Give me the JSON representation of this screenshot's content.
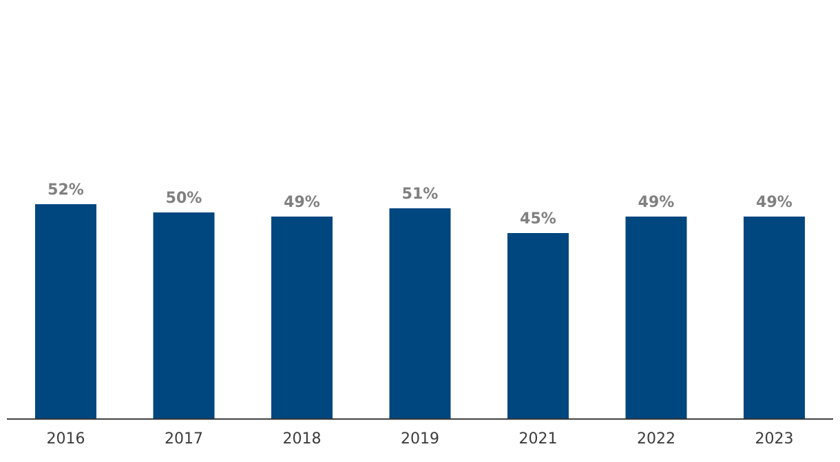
{
  "chart_data": {
    "type": "bar",
    "categories": [
      "2016",
      "2017",
      "2018",
      "2019",
      "2021",
      "2022",
      "2023"
    ],
    "values": [
      52,
      50,
      49,
      51,
      45,
      49,
      49
    ],
    "value_suffix": "%",
    "ylim": [
      0,
      100
    ],
    "grid": false,
    "legend": "none",
    "colors": {
      "bar": "#00467f",
      "data_label": "#808080",
      "tick_label": "#3c3c3c",
      "axis": "#333333"
    }
  }
}
